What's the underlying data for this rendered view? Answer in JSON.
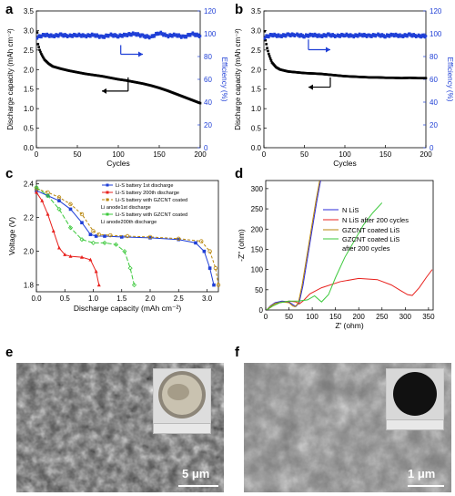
{
  "panels": {
    "a": "a",
    "b": "b",
    "c": "c",
    "d": "d",
    "e": "e",
    "f": "f"
  },
  "chart_data": [
    {
      "id": "a",
      "type": "scatter",
      "xlabel": "Cycles",
      "ylabel": "Discharge capacity (mAh cm⁻²)",
      "y2label": "Efficiency (%)",
      "xlim": [
        0,
        200
      ],
      "ylim": [
        0.0,
        3.5
      ],
      "y2lim": [
        0,
        120
      ],
      "xticks": [
        "0",
        "50",
        "100",
        "150",
        "200"
      ],
      "yticks": [
        "0.0",
        "0.5",
        "1.0",
        "1.5",
        "2.0",
        "2.5",
        "3.0",
        "3.5"
      ],
      "y2ticks": [
        "0",
        "20",
        "40",
        "60",
        "80",
        "100",
        "120"
      ],
      "series": [
        {
          "axis": "left",
          "color": "#000000",
          "x": [
            1,
            2,
            4,
            6,
            8,
            10,
            15,
            20,
            30,
            40,
            50,
            60,
            70,
            80,
            90,
            100,
            110,
            120,
            130,
            140,
            150,
            160,
            170,
            180,
            190,
            200
          ],
          "y": [
            2.95,
            2.65,
            2.5,
            2.4,
            2.32,
            2.25,
            2.15,
            2.08,
            2.02,
            1.97,
            1.93,
            1.89,
            1.86,
            1.83,
            1.79,
            1.75,
            1.72,
            1.68,
            1.64,
            1.59,
            1.53,
            1.46,
            1.38,
            1.3,
            1.22,
            1.14
          ]
        },
        {
          "axis": "right",
          "color": "#1f3fd6",
          "x": [
            1,
            10,
            20,
            30,
            40,
            50,
            60,
            70,
            80,
            90,
            100,
            110,
            120,
            130,
            140,
            150,
            160,
            170,
            180,
            190,
            200
          ],
          "y": [
            97,
            99,
            98,
            99,
            98,
            99,
            98,
            99,
            97,
            99,
            98,
            99,
            100,
            98,
            97,
            101,
            98,
            99,
            97,
            100,
            98
          ]
        }
      ]
    },
    {
      "id": "b",
      "type": "scatter",
      "xlabel": "Cycles",
      "ylabel": "Discharge capacity (mAh cm⁻²)",
      "y2label": "Efficiency (%)",
      "xlim": [
        0,
        200
      ],
      "ylim": [
        0.0,
        3.5
      ],
      "y2lim": [
        0,
        120
      ],
      "xticks": [
        "0",
        "50",
        "100",
        "150",
        "200"
      ],
      "yticks": [
        "0.0",
        "0.5",
        "1.0",
        "1.5",
        "2.0",
        "2.5",
        "3.0",
        "3.5"
      ],
      "y2ticks": [
        "0",
        "20",
        "40",
        "60",
        "80",
        "100",
        "120"
      ],
      "series": [
        {
          "axis": "left",
          "color": "#000000",
          "x": [
            1,
            2,
            4,
            6,
            8,
            10,
            15,
            20,
            30,
            40,
            50,
            60,
            70,
            80,
            90,
            100,
            110,
            120,
            130,
            140,
            150,
            160,
            170,
            180,
            190,
            200
          ],
          "y": [
            2.98,
            2.75,
            2.55,
            2.4,
            2.28,
            2.18,
            2.06,
            2.0,
            1.95,
            1.93,
            1.91,
            1.9,
            1.89,
            1.87,
            1.85,
            1.83,
            1.82,
            1.81,
            1.8,
            1.8,
            1.79,
            1.79,
            1.78,
            1.79,
            1.78,
            1.78
          ]
        },
        {
          "axis": "right",
          "color": "#1f3fd6",
          "x": [
            1,
            10,
            20,
            30,
            40,
            50,
            60,
            70,
            80,
            90,
            100,
            110,
            120,
            130,
            140,
            150,
            160,
            170,
            180,
            190,
            200
          ],
          "y": [
            97,
            99,
            98,
            99,
            99,
            98,
            99,
            98,
            99,
            98,
            99,
            98,
            99,
            98,
            99,
            98,
            99,
            98,
            99,
            98,
            98
          ]
        }
      ]
    },
    {
      "id": "c",
      "type": "line",
      "xlabel": "Discharge capacity (mAh cm⁻²)",
      "ylabel": "Voltage (V)",
      "xlim": [
        0,
        3.2
      ],
      "ylim": [
        1.76,
        2.42
      ],
      "xticks": [
        "0.0",
        "0.5",
        "1.0",
        "1.5",
        "2.0",
        "2.5",
        "3.0"
      ],
      "yticks": [
        "1.8",
        "2.0",
        "2.2",
        "2.4"
      ],
      "legend": [
        "Li-S battery 1st discharge",
        "Li-S battery 200th discharge",
        "Li-S battery with GZCNT coated Li anode1st discharge",
        "Li-S battery with GZCNT coated Li anode200th discharge"
      ],
      "series": [
        {
          "name": "Li-S battery 1st discharge",
          "color": "#1f3fd6",
          "marker": "square",
          "x": [
            0,
            0.2,
            0.4,
            0.6,
            0.8,
            0.95,
            1.05,
            1.2,
            1.5,
            2.0,
            2.5,
            2.8,
            2.95,
            3.05,
            3.12
          ],
          "y": [
            2.36,
            2.33,
            2.3,
            2.25,
            2.17,
            2.1,
            2.09,
            2.09,
            2.085,
            2.08,
            2.07,
            2.05,
            2.0,
            1.9,
            1.8
          ]
        },
        {
          "name": "Li-S battery 200th discharge",
          "color": "#e8211d",
          "marker": "triangle",
          "x": [
            0,
            0.1,
            0.2,
            0.3,
            0.4,
            0.5,
            0.6,
            0.8,
            0.95,
            1.05,
            1.1
          ],
          "y": [
            2.35,
            2.3,
            2.22,
            2.12,
            2.02,
            1.98,
            1.97,
            1.965,
            1.95,
            1.88,
            1.8
          ]
        },
        {
          "name": "Li-S battery with GZCNT coated Li anode1st discharge",
          "color": "#b8860b",
          "marker": "circle",
          "x": [
            0,
            0.2,
            0.4,
            0.6,
            0.8,
            1.0,
            1.1,
            1.3,
            1.6,
            2.0,
            2.5,
            2.9,
            3.05,
            3.15,
            3.2
          ],
          "y": [
            2.37,
            2.35,
            2.32,
            2.28,
            2.22,
            2.12,
            2.1,
            2.095,
            2.09,
            2.085,
            2.075,
            2.06,
            2.0,
            1.9,
            1.8
          ]
        },
        {
          "name": "Li-S battery with GZCNT coated Li anode200th discharge",
          "color": "#3cc93c",
          "marker": "diamond",
          "x": [
            0,
            0.2,
            0.4,
            0.6,
            0.8,
            1.0,
            1.2,
            1.4,
            1.55,
            1.65,
            1.72
          ],
          "y": [
            2.38,
            2.33,
            2.25,
            2.14,
            2.07,
            2.05,
            2.05,
            2.04,
            2.0,
            1.9,
            1.8
          ]
        }
      ]
    },
    {
      "id": "d",
      "type": "line",
      "xlabel": "Z' (ohm)",
      "ylabel": "-Z\" (ohm)",
      "xlim": [
        0,
        360
      ],
      "ylim": [
        0,
        320
      ],
      "xticks": [
        "0",
        "50",
        "100",
        "150",
        "200",
        "250",
        "300",
        "350"
      ],
      "yticks": [
        "0",
        "50",
        "100",
        "150",
        "200",
        "250",
        "300"
      ],
      "legend": [
        "N LiS",
        "N LiS after 200 cycles",
        "GZCNT coated LiS",
        "GZCNT coated LiS after 200 cycles"
      ],
      "series": [
        {
          "name": "N LiS",
          "color": "#2b2bd9",
          "x": [
            2,
            10,
            20,
            35,
            50,
            60,
            65,
            72,
            80,
            90,
            100,
            110,
            118
          ],
          "y": [
            0,
            10,
            18,
            22,
            20,
            12,
            9,
            18,
            60,
            130,
            200,
            270,
            320
          ]
        },
        {
          "name": "N LiS after 200 cycles",
          "color": "#e8211d",
          "x": [
            2,
            15,
            30,
            50,
            65,
            72,
            80,
            95,
            120,
            160,
            200,
            240,
            270,
            290,
            305,
            315,
            330,
            345,
            358
          ],
          "y": [
            0,
            10,
            18,
            22,
            20,
            15,
            22,
            40,
            55,
            70,
            78,
            75,
            62,
            48,
            38,
            36,
            55,
            80,
            100
          ]
        },
        {
          "name": "GZCNT coated LiS",
          "color": "#b8860b",
          "x": [
            2,
            10,
            20,
            35,
            50,
            58,
            63,
            70,
            78,
            88,
            98,
            108,
            116
          ],
          "y": [
            0,
            9,
            16,
            20,
            18,
            10,
            8,
            17,
            60,
            130,
            200,
            270,
            320
          ]
        },
        {
          "name": "GZCNT coated LiS after 200 cycles",
          "color": "#3cc93c",
          "x": [
            2,
            15,
            30,
            50,
            70,
            90,
            105,
            120,
            135,
            150,
            170,
            190,
            210,
            230,
            250
          ],
          "y": [
            0,
            10,
            18,
            22,
            22,
            25,
            35,
            20,
            38,
            80,
            130,
            170,
            210,
            240,
            265
          ]
        }
      ]
    }
  ],
  "sem": {
    "e": {
      "scale_label": "5 μm"
    },
    "f": {
      "scale_label": "1 μm"
    }
  },
  "annotations": {
    "c_legend_texts": [
      "Li-S battery 1st discharge",
      "Li-S battery 200th discharge",
      "Li-S battery with GZCNT coated",
      "Li anode1st discharge",
      "Li-S battery with GZCNT coated",
      "Li anode200th discharge"
    ],
    "d_legend_texts": [
      "N LiS",
      "N LiS after 200 cycles",
      "GZCNT coated LiS",
      "GZCNT coated LiS",
      "after 200 cycles"
    ]
  }
}
